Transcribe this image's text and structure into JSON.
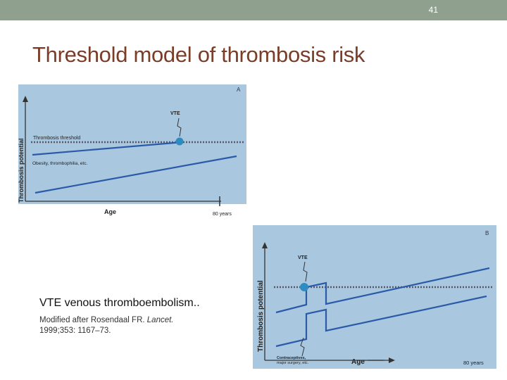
{
  "slide": {
    "number": "41",
    "title": "Threshold model of thrombosis risk"
  },
  "panel_a": {
    "letter": "A",
    "y_axis_label": "Thrombosis potential",
    "x_axis_label": "Age",
    "age_end_label": "80 years",
    "event_label": "VTE",
    "threshold_label": "Thrombosis threshold",
    "factor_label": "Obesity, thrombophilia, etc."
  },
  "panel_b": {
    "letter": "B",
    "y_axis_label": "Thrombosis potential",
    "x_axis_label": "Age",
    "age_end_label": "80 years",
    "event_label": "VTE",
    "trigger_label_line1": "Contraceptives,",
    "trigger_label_line2": "major surgery, etc."
  },
  "caption": {
    "main": "VTE  venous thromboembolism..",
    "ref_prefix": "Modified after Rosendaal FR. ",
    "ref_journal": "Lancet.",
    "ref_suffix": "1999;353: 1167–73."
  },
  "colors": {
    "panel_bg": "#a9c8e0",
    "line": "#2a5aa8",
    "threshold": "#555566",
    "title": "#7a3d27",
    "topbar": "#8fa08f"
  }
}
